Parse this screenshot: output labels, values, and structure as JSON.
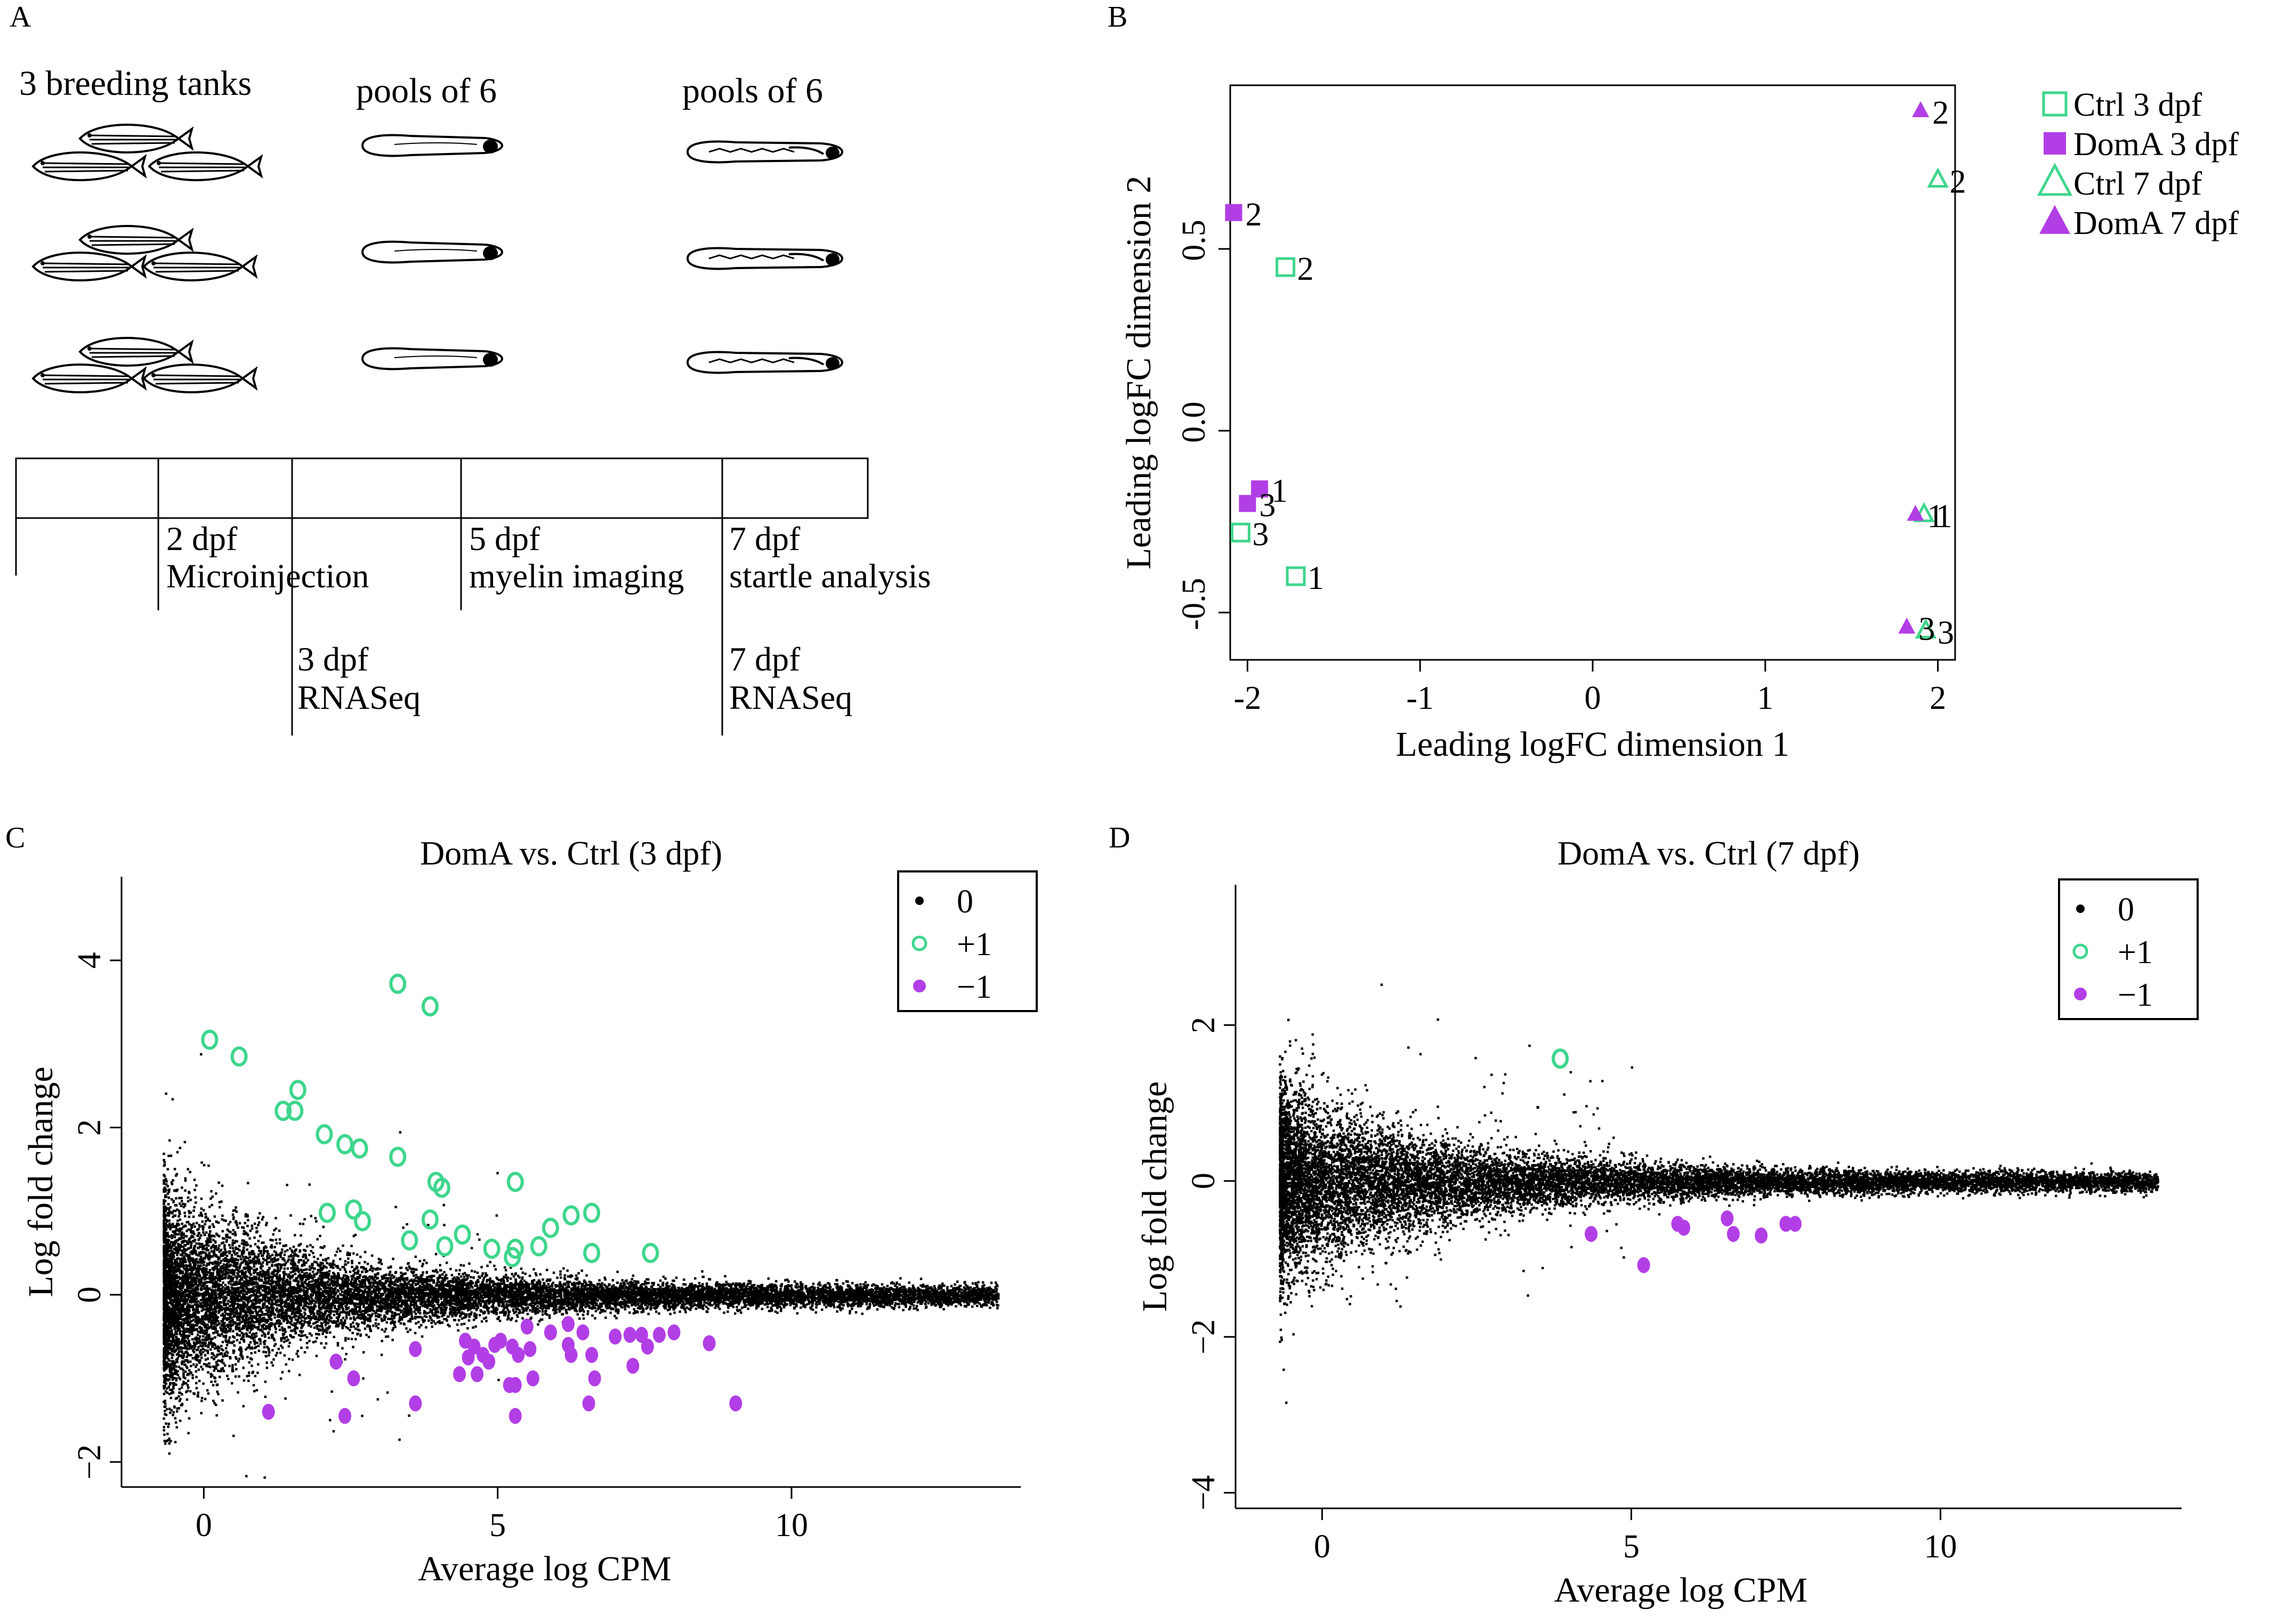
{
  "panel_labels": {
    "a": "A",
    "b": "B",
    "c": "C",
    "d": "D"
  },
  "schematic": {
    "col_titles": [
      "3 breeding tanks",
      "pools of 6",
      "pools of 6"
    ],
    "timeline_upper": [
      {
        "day": "2 dpf",
        "event": "Microinjection"
      },
      {
        "day": "5 dpf",
        "event": "myelin imaging"
      },
      {
        "day": "7 dpf",
        "event": "startle analysis"
      }
    ],
    "timeline_lower": [
      {
        "day": "3 dpf",
        "event": "RNASeq"
      },
      {
        "day": "7 dpf",
        "event": "RNASeq"
      }
    ]
  },
  "colors": {
    "ctrl": "#3dd68c",
    "doma": "#b23ee6",
    "black": "#000000"
  },
  "chart_data": [
    {
      "type": "scatter",
      "panel": "B",
      "title": "",
      "xlabel": "Leading logFC dimension 1",
      "ylabel": "Leading logFC dimension 2",
      "xlim": [
        -2.1,
        2.1
      ],
      "ylim": [
        -0.63,
        0.95
      ],
      "xticks": [
        "-2",
        "-1",
        "0",
        "1",
        "2"
      ],
      "yticks": [
        "-0.5",
        "0.0",
        "0.5"
      ],
      "legend_position": "top-right",
      "series": [
        {
          "name": "Ctrl 3 dpf",
          "marker": "square-open",
          "color": "#3dd68c",
          "points": [
            {
              "x": -1.72,
              "y": -0.4,
              "label": "1"
            },
            {
              "x": -1.78,
              "y": 0.45,
              "label": "2"
            },
            {
              "x": -2.04,
              "y": -0.28,
              "label": "3"
            }
          ]
        },
        {
          "name": "DomA 3 dpf",
          "marker": "square-filled",
          "color": "#b23ee6",
          "points": [
            {
              "x": -1.93,
              "y": -0.16,
              "label": "1"
            },
            {
              "x": -2.08,
              "y": 0.6,
              "label": "2"
            },
            {
              "x": -2.0,
              "y": -0.2,
              "label": "3"
            }
          ]
        },
        {
          "name": "Ctrl 7 dpf",
          "marker": "triangle-open",
          "color": "#3dd68c",
          "points": [
            {
              "x": 1.92,
              "y": -0.23,
              "label": "1"
            },
            {
              "x": 2.0,
              "y": 0.69,
              "label": "2"
            },
            {
              "x": 1.93,
              "y": -0.55,
              "label": "3"
            }
          ]
        },
        {
          "name": "DomA 7 dpf",
          "marker": "triangle-filled",
          "color": "#b23ee6",
          "points": [
            {
              "x": 1.87,
              "y": -0.23,
              "label": "1"
            },
            {
              "x": 1.9,
              "y": 0.88,
              "label": "2"
            },
            {
              "x": 1.82,
              "y": -0.54,
              "label": "3"
            }
          ]
        }
      ]
    },
    {
      "type": "scatter",
      "panel": "C",
      "title": "DomA vs. Ctrl (3 dpf)",
      "xlabel": "Average log CPM",
      "ylabel": "Log fold change",
      "xlim": [
        -1.4,
        13.9
      ],
      "ylim": [
        -2.3,
        5.0
      ],
      "xticks": [
        "0",
        "5",
        "10"
      ],
      "yticks": [
        "−2",
        "0",
        "2",
        "4"
      ],
      "legend_position": "top-right",
      "legend": [
        "0",
        "+1",
        "−1"
      ],
      "background_points": {
        "n": 14000,
        "note": "non-significant genes"
      },
      "series": [
        {
          "name": "+1",
          "marker": "circle-open",
          "color": "#3dd68c",
          "points": [
            [
              0.1,
              3.05
            ],
            [
              0.6,
              2.85
            ],
            [
              1.6,
              2.45
            ],
            [
              1.35,
              2.2
            ],
            [
              1.55,
              2.2
            ],
            [
              2.05,
              1.92
            ],
            [
              2.4,
              1.8
            ],
            [
              2.65,
              1.75
            ],
            [
              3.3,
              3.72
            ],
            [
              3.85,
              3.45
            ],
            [
              3.3,
              1.65
            ],
            [
              3.95,
              1.35
            ],
            [
              4.05,
              1.28
            ],
            [
              5.3,
              1.35
            ],
            [
              2.1,
              0.98
            ],
            [
              2.55,
              1.02
            ],
            [
              2.7,
              0.88
            ],
            [
              3.5,
              0.65
            ],
            [
              3.85,
              0.9
            ],
            [
              4.4,
              0.72
            ],
            [
              4.1,
              0.58
            ],
            [
              4.9,
              0.55
            ],
            [
              5.3,
              0.55
            ],
            [
              5.25,
              0.45
            ],
            [
              5.7,
              0.58
            ],
            [
              5.9,
              0.8
            ],
            [
              6.25,
              0.95
            ],
            [
              6.6,
              0.98
            ],
            [
              6.6,
              0.5
            ],
            [
              7.6,
              0.5
            ]
          ]
        },
        {
          "name": "−1",
          "marker": "circle-filled",
          "color": "#b23ee6",
          "points": [
            [
              1.1,
              -1.4
            ],
            [
              2.25,
              -0.8
            ],
            [
              2.55,
              -1.0
            ],
            [
              2.4,
              -1.45
            ],
            [
              3.6,
              -0.65
            ],
            [
              3.6,
              -1.3
            ],
            [
              4.35,
              -0.95
            ],
            [
              4.45,
              -0.55
            ],
            [
              4.5,
              -0.75
            ],
            [
              4.6,
              -0.62
            ],
            [
              4.75,
              -0.72
            ],
            [
              4.85,
              -0.8
            ],
            [
              4.95,
              -0.6
            ],
            [
              5.05,
              -0.55
            ],
            [
              4.65,
              -0.95
            ],
            [
              5.2,
              -1.08
            ],
            [
              5.3,
              -1.08
            ],
            [
              5.35,
              -0.72
            ],
            [
              5.55,
              -0.65
            ],
            [
              5.6,
              -1.0
            ],
            [
              5.3,
              -1.45
            ],
            [
              5.9,
              -0.45
            ],
            [
              6.2,
              -0.6
            ],
            [
              6.25,
              -0.72
            ],
            [
              6.45,
              -0.45
            ],
            [
              6.6,
              -0.72
            ],
            [
              6.65,
              -1.0
            ],
            [
              6.55,
              -1.3
            ],
            [
              7.0,
              -0.5
            ],
            [
              7.25,
              -0.48
            ],
            [
              7.3,
              -0.85
            ],
            [
              7.45,
              -0.48
            ],
            [
              7.55,
              -0.62
            ],
            [
              7.75,
              -0.48
            ],
            [
              8.0,
              -0.45
            ],
            [
              8.6,
              -0.58
            ],
            [
              9.05,
              -1.3
            ],
            [
              5.5,
              -0.38
            ],
            [
              6.2,
              -0.35
            ],
            [
              5.25,
              -0.62
            ]
          ]
        }
      ]
    },
    {
      "type": "scatter",
      "panel": "D",
      "title": "DomA vs. Ctrl (7 dpf)",
      "xlabel": "Average log CPM",
      "ylabel": "Log fold change",
      "xlim": [
        -1.4,
        13.9
      ],
      "ylim": [
        -4.2,
        3.8
      ],
      "xticks": [
        "0",
        "5",
        "10"
      ],
      "yticks": [
        "−4",
        "−2",
        "0",
        "2"
      ],
      "legend_position": "top-right",
      "legend": [
        "0",
        "+1",
        "−1"
      ],
      "background_points": {
        "n": 14000,
        "note": "non-significant genes"
      },
      "series": [
        {
          "name": "+1",
          "marker": "circle-open",
          "color": "#3dd68c",
          "points": [
            [
              3.85,
              1.57
            ]
          ]
        },
        {
          "name": "−1",
          "marker": "circle-filled",
          "color": "#b23ee6",
          "points": [
            [
              4.35,
              -0.68
            ],
            [
              5.2,
              -1.08
            ],
            [
              5.75,
              -0.55
            ],
            [
              5.85,
              -0.6
            ],
            [
              6.55,
              -0.48
            ],
            [
              6.65,
              -0.68
            ],
            [
              7.1,
              -0.7
            ],
            [
              7.5,
              -0.55
            ],
            [
              7.65,
              -0.55
            ]
          ]
        }
      ]
    }
  ]
}
